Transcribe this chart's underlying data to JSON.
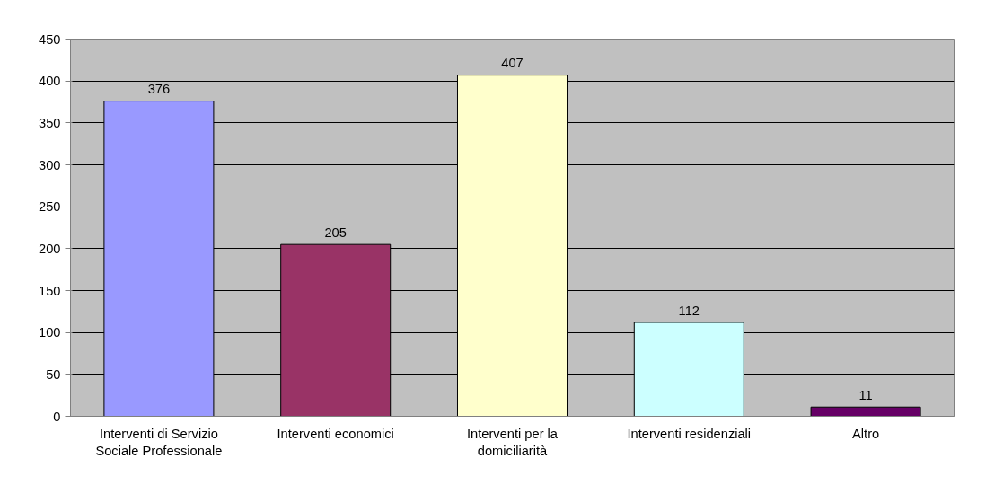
{
  "chart_data": {
    "type": "bar",
    "categories": [
      "Interventi di Servizio Sociale Professionale",
      "Interventi economici",
      "Interventi per la domiciliarità",
      "Interventi residenziali",
      "Altro"
    ],
    "values": [
      376,
      205,
      407,
      112,
      11
    ],
    "colors": [
      "#9999ff",
      "#993366",
      "#ffffcc",
      "#ccffff",
      "#660066"
    ],
    "ylim": [
      0,
      450
    ],
    "yticks": [
      0,
      50,
      100,
      150,
      200,
      250,
      300,
      350,
      400,
      450
    ],
    "grid": "y",
    "data_labels": true
  }
}
